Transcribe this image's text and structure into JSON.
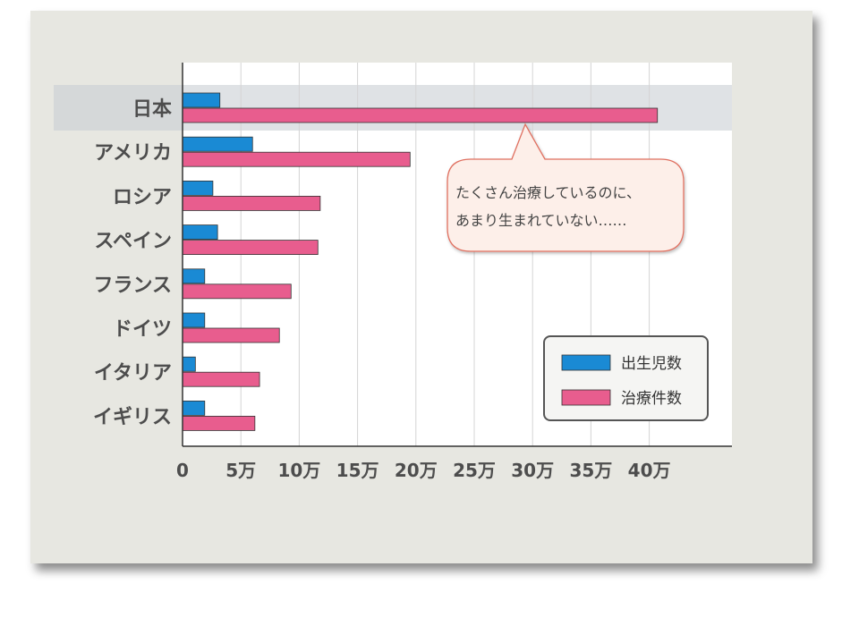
{
  "chart_data": {
    "type": "bar",
    "orientation": "horizontal",
    "categories": [
      "日本",
      "アメリカ",
      "ロシア",
      "スペイン",
      "フランス",
      "ドイツ",
      "イタリア",
      "イギリス"
    ],
    "series": [
      {
        "name": "出生児数",
        "color": "#1a8ad4",
        "values": [
          32000,
          60000,
          26000,
          30000,
          19000,
          19000,
          11000,
          19000
        ]
      },
      {
        "name": "治療件数",
        "color": "#e85d8e",
        "values": [
          407000,
          195000,
          118000,
          116000,
          93000,
          83000,
          66000,
          62000
        ]
      }
    ],
    "xlim": [
      0,
      470000
    ],
    "xticks": [
      0,
      50000,
      100000,
      150000,
      200000,
      250000,
      300000,
      350000,
      400000
    ],
    "xtick_labels": [
      "0",
      "5万",
      "10万",
      "15万",
      "20万",
      "25万",
      "30万",
      "35万",
      "40万"
    ],
    "highlight_category": "日本",
    "grid": "vertical",
    "legend_position": "bottom-right",
    "annotation": {
      "lines": [
        "たくさん治療しているのに、",
        "あまり生まれていない……"
      ],
      "points_to": "日本"
    }
  }
}
